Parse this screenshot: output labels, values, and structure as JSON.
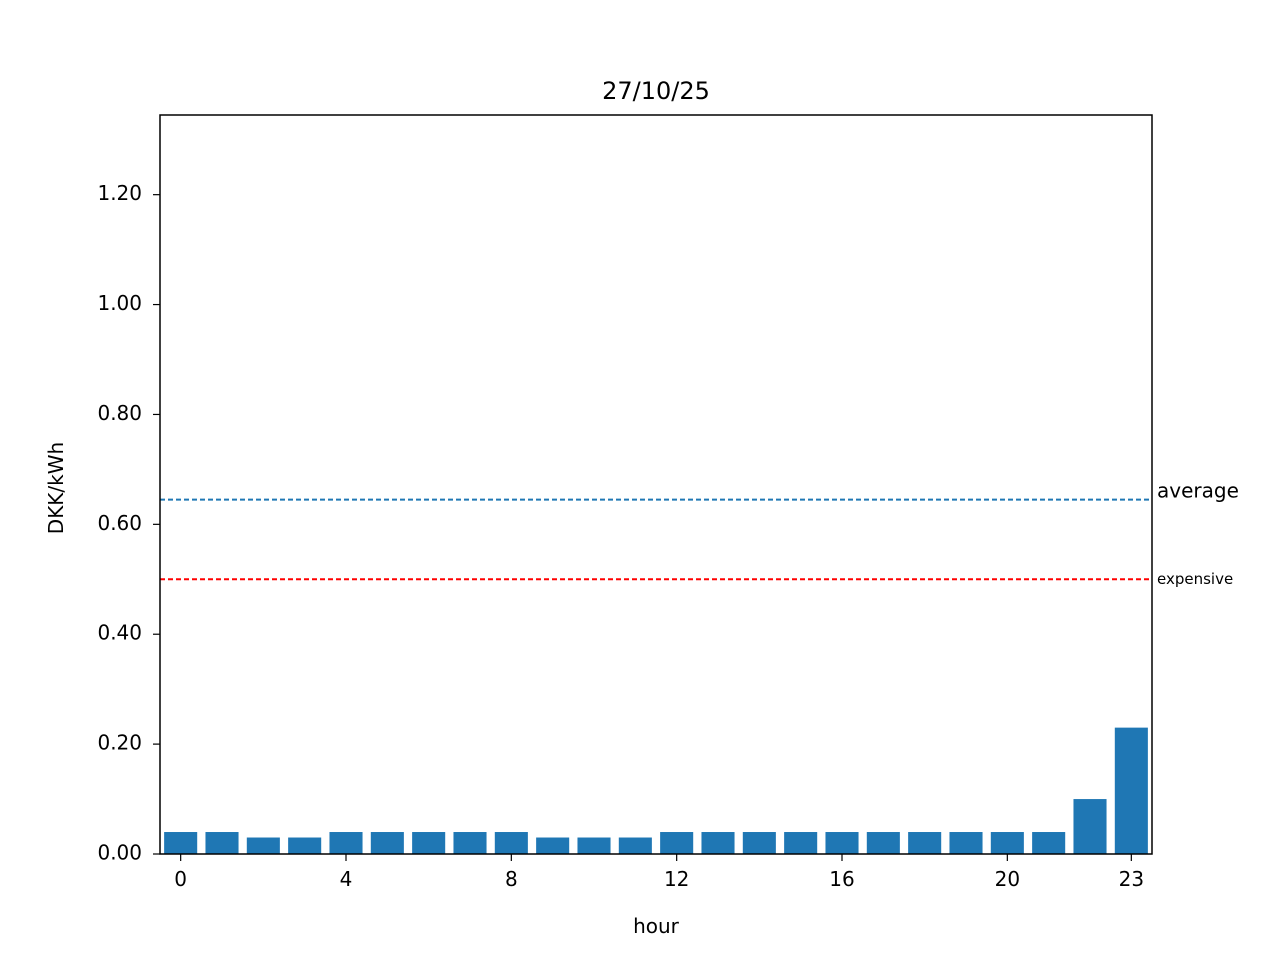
{
  "chart_data": {
    "type": "bar",
    "title": "27/10/25",
    "xlabel": "hour",
    "ylabel": "DKK/kWh",
    "x": [
      0,
      1,
      2,
      3,
      4,
      5,
      6,
      7,
      8,
      9,
      10,
      11,
      12,
      13,
      14,
      15,
      16,
      17,
      18,
      19,
      20,
      21,
      22,
      23
    ],
    "values": [
      0.04,
      0.04,
      0.03,
      0.03,
      0.04,
      0.04,
      0.04,
      0.04,
      0.04,
      0.03,
      0.03,
      0.03,
      0.04,
      0.04,
      0.04,
      0.04,
      0.04,
      0.04,
      0.04,
      0.04,
      0.04,
      0.04,
      0.1,
      0.23
    ],
    "bar_color": "#1f77b4",
    "xlim": [
      -0.5,
      23.5
    ],
    "ylim": [
      0,
      1.345
    ],
    "xticks": [
      0,
      4,
      8,
      12,
      16,
      20,
      23
    ],
    "xtick_labels": [
      "0",
      "4",
      "8",
      "12",
      "16",
      "20",
      "23"
    ],
    "yticks": [
      0,
      0.2,
      0.4,
      0.6,
      0.8,
      1.0,
      1.2
    ],
    "ytick_labels": [
      "0.00",
      "0.20",
      "0.40",
      "0.60",
      "0.80",
      "1.00",
      "1.20"
    ],
    "grid": false,
    "reference_lines": [
      {
        "label": "average",
        "value": 0.645,
        "color": "#1f77b4",
        "style": "dashed"
      },
      {
        "label": "expensive",
        "value": 0.5,
        "color": "#ff0000",
        "style": "dashed"
      }
    ]
  }
}
